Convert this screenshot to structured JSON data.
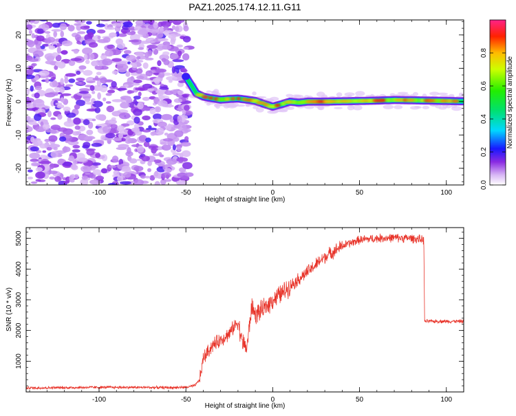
{
  "title": "PAZ1.2025.174.12.11.G11",
  "chart_data": [
    {
      "type": "heatmap",
      "xlabel": "Height of straight line (km)",
      "ylabel": "Frequency (Hz)",
      "xlim": [
        -142,
        110
      ],
      "ylim": [
        -25,
        24.5
      ],
      "xticks": [
        -100,
        -50,
        0,
        50,
        100
      ],
      "yticks": [
        -20,
        -10,
        0,
        10,
        20
      ],
      "colorbar": {
        "label": "Normalized spectral amplitude",
        "range": [
          0,
          1
        ],
        "ticks": [
          0.0,
          0.2,
          0.4,
          0.6,
          0.8
        ],
        "tick_labels": [
          "0.0",
          "0.2",
          "0.4",
          "0.6",
          "0.8"
        ],
        "colormap": "rainbow"
      },
      "noise_region_x": [
        -142,
        -48
      ],
      "signal_ridge": {
        "x": [
          -50,
          -47,
          -44,
          -40,
          -35,
          -30,
          -25,
          -20,
          -15,
          -10,
          -5,
          0,
          5,
          10,
          15,
          20,
          30,
          40,
          50,
          60,
          70,
          80,
          90,
          100,
          110
        ],
        "y": [
          7.5,
          5.0,
          2.5,
          1.5,
          1.0,
          0.6,
          0.8,
          0.9,
          0.6,
          0.2,
          -0.7,
          -1.5,
          -0.8,
          0.0,
          -0.3,
          0.0,
          0.0,
          0.1,
          0.2,
          0.3,
          0.5,
          0.4,
          0.3,
          0.2,
          0.1
        ]
      }
    },
    {
      "type": "line",
      "xlabel": "Height of straight line (km)",
      "ylabel": "SNR (10 * v/v)",
      "xlim": [
        -142,
        110
      ],
      "ylim": [
        0,
        5350
      ],
      "xticks": [
        -100,
        -50,
        0,
        50,
        100
      ],
      "yticks": [
        1000,
        2000,
        3000,
        4000,
        5000
      ],
      "color": "#e8342a",
      "series": [
        {
          "x": [
            -142,
            -120,
            -100,
            -80,
            -60,
            -50,
            -45,
            -42,
            -40,
            -38,
            -35,
            -30,
            -25,
            -20,
            -18,
            -15,
            -12,
            -10,
            -8,
            -5,
            0,
            5,
            10,
            20,
            30,
            40,
            50,
            60,
            70,
            80,
            87,
            87.5,
            90,
            100,
            110
          ],
          "values": [
            130,
            140,
            150,
            150,
            140,
            150,
            200,
            400,
            1100,
            1250,
            1500,
            1700,
            1900,
            2300,
            1700,
            1400,
            2800,
            2500,
            2600,
            2700,
            3000,
            3200,
            3450,
            3900,
            4400,
            4750,
            4950,
            5000,
            5020,
            5000,
            4950,
            2300,
            2300,
            2300,
            2300
          ]
        }
      ]
    }
  ]
}
